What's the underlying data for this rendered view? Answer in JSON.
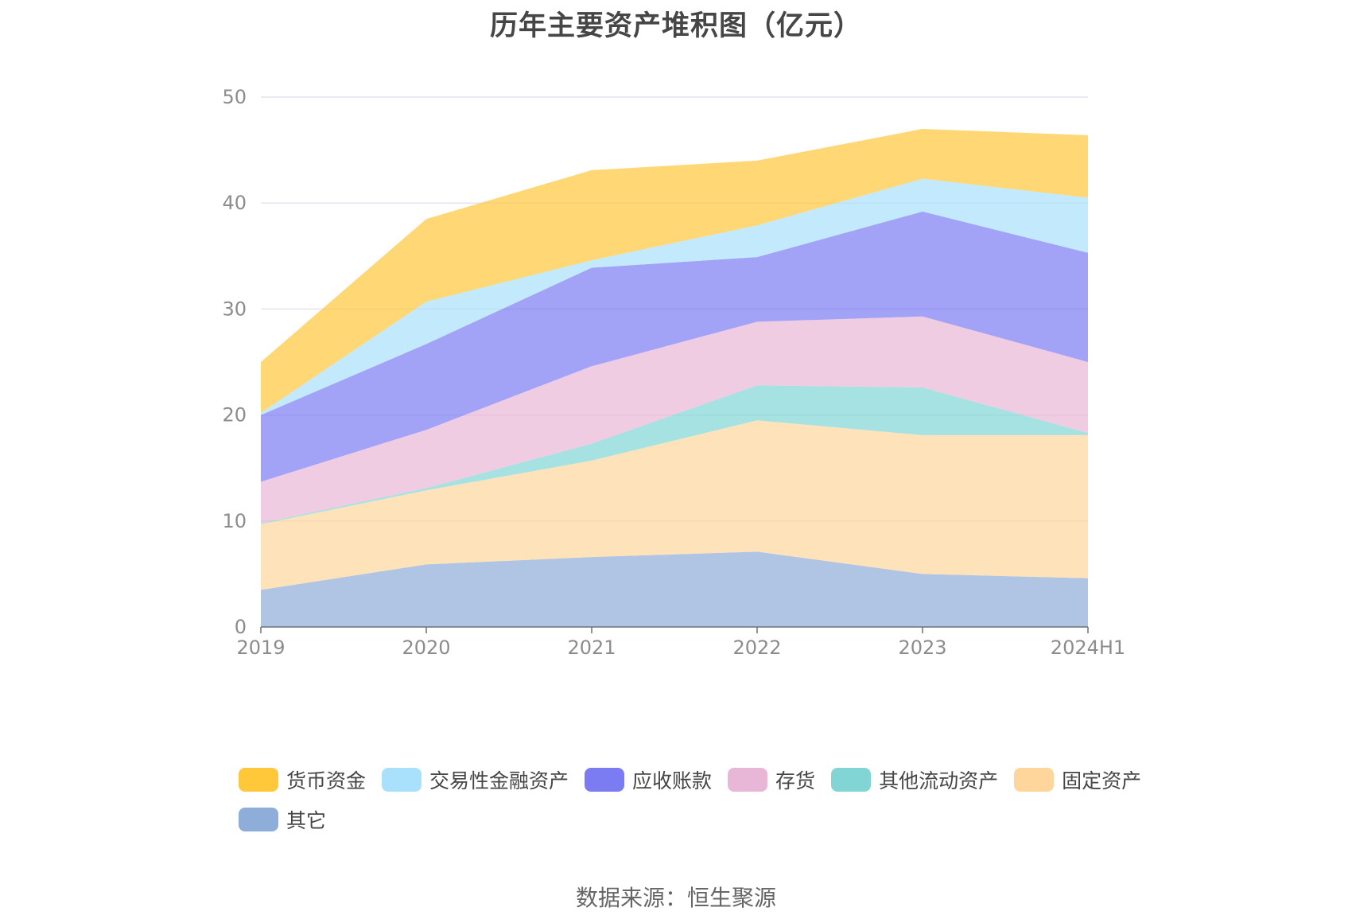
{
  "chart_data": {
    "type": "area",
    "stacked": true,
    "title": "历年主要资产堆积图（亿元）",
    "categories": [
      "2019",
      "2020",
      "2021",
      "2022",
      "2023",
      "2024H1"
    ],
    "ylim": [
      0,
      50
    ],
    "yticks": [
      "0",
      "10",
      "20",
      "30",
      "40",
      "50"
    ],
    "grid": true,
    "legend_position": "bottom",
    "series": [
      {
        "name": "其它",
        "color": "#8fadd9",
        "values": [
          3.5,
          5.9,
          6.6,
          7.1,
          5.0,
          4.6
        ]
      },
      {
        "name": "固定资产",
        "color": "#fed69b",
        "values": [
          6.2,
          7.0,
          9.1,
          12.4,
          13.1,
          13.5
        ]
      },
      {
        "name": "其他流动资产",
        "color": "#82d5d5",
        "values": [
          0.1,
          0.2,
          1.6,
          3.3,
          4.5,
          0.2
        ]
      },
      {
        "name": "存货",
        "color": "#e8b6d6",
        "values": [
          3.9,
          5.5,
          7.3,
          6.0,
          6.7,
          6.7
        ]
      },
      {
        "name": "应收账款",
        "color": "#7b7bf2",
        "values": [
          6.3,
          8.1,
          9.3,
          6.1,
          9.9,
          10.3
        ]
      },
      {
        "name": "交易性金融资产",
        "color": "#a9e0fb",
        "values": [
          0.2,
          4.0,
          0.7,
          3.0,
          3.1,
          5.2
        ]
      },
      {
        "name": "货币资金",
        "color": "#ffc83a",
        "values": [
          4.8,
          7.8,
          8.5,
          6.1,
          4.7,
          5.9
        ]
      }
    ],
    "legend": [
      "货币资金",
      "交易性金融资产",
      "应收账款",
      "存货",
      "其他流动资产",
      "固定资产",
      "其它"
    ]
  },
  "source": "数据来源：恒生聚源"
}
